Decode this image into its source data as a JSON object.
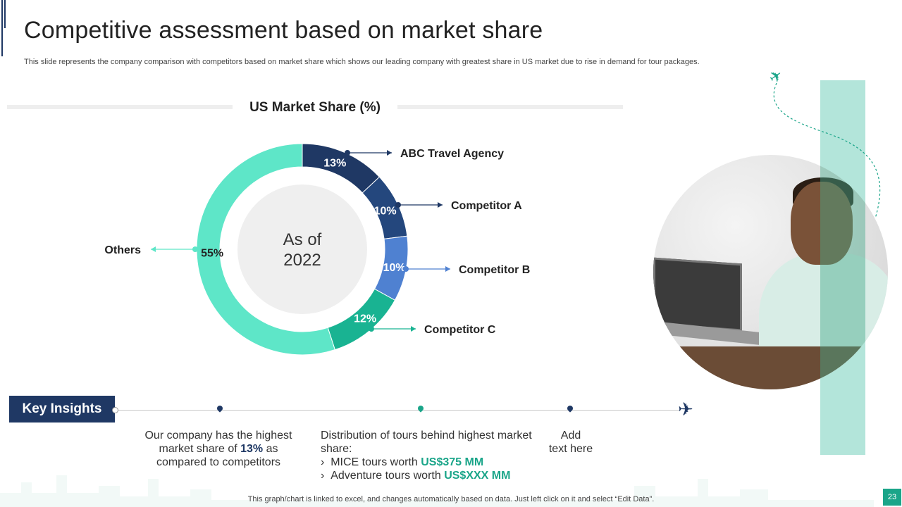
{
  "header": {
    "title": "Competitive assessment based on market share",
    "subtitle": "This slide represents the company comparison with competitors based on market share which shows our leading company with greatest share in US market due to rise in demand for tour packages."
  },
  "chart_data": {
    "type": "pie",
    "title": "US Market Share (%)",
    "center_label": [
      "As of",
      "2022"
    ],
    "categories": [
      "ABC Travel Agency",
      "Competitor A",
      "Competitor B",
      "Competitor C",
      "Others"
    ],
    "values": [
      13,
      10,
      10,
      12,
      55
    ],
    "data_labels": [
      "13%",
      "10%",
      "10%",
      "12%",
      "55%"
    ],
    "colors": [
      "#1f3864",
      "#24477d",
      "#4f81d1",
      "#19b392",
      "#5ee6c8"
    ]
  },
  "insights": {
    "badge": "Key Insights",
    "col1": {
      "pre": "Our company has the highest market share of ",
      "highlight": "13%",
      "post": " as compared to competitors"
    },
    "col2": {
      "intro": "Distribution of tours behind highest market share:",
      "items": [
        {
          "marker": "›",
          "text": "MICE tours worth ",
          "value": "US$375 MM"
        },
        {
          "marker": "›",
          "text": "Adventure tours worth ",
          "value": "US$XXX MM"
        }
      ]
    },
    "col3": {
      "line1": "Add",
      "line2": "text here"
    }
  },
  "footer": {
    "note": "This graph/chart is linked to excel, and changes automatically based on data. Just left click on it and select “Edit Data”.",
    "page_number": "23"
  },
  "icons": {
    "plane_top": "airplane-icon",
    "plane_bottom": "airplane-icon"
  }
}
